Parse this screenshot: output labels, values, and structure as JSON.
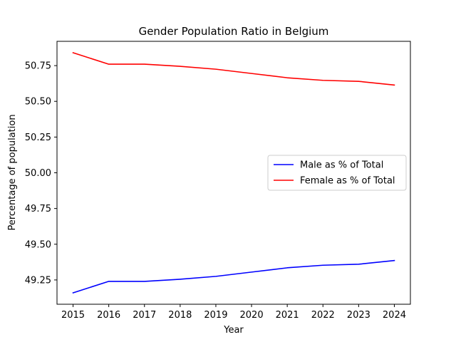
{
  "chart_data": {
    "type": "line",
    "title": "Gender Population Ratio in Belgium",
    "xlabel": "Year",
    "ylabel": "Percentage of population",
    "x": [
      2015,
      2016,
      2017,
      2018,
      2019,
      2020,
      2021,
      2022,
      2023,
      2024
    ],
    "xticks": [
      "2015",
      "2016",
      "2017",
      "2018",
      "2019",
      "2020",
      "2021",
      "2022",
      "2023",
      "2024"
    ],
    "yticks": [
      "49.25",
      "49.50",
      "49.75",
      "50.00",
      "50.25",
      "50.50",
      "50.75"
    ],
    "ytick_values": [
      49.25,
      49.5,
      49.75,
      50.0,
      50.25,
      50.5,
      50.75
    ],
    "xlim": [
      2014.55,
      2024.45
    ],
    "ylim": [
      49.08,
      50.92
    ],
    "grid": false,
    "legend_position": "center-right",
    "series": [
      {
        "name": "Male as % of Total",
        "color": "#0000ff",
        "values": [
          49.16,
          49.24,
          49.24,
          49.255,
          49.275,
          49.305,
          49.335,
          49.353,
          49.36,
          49.386
        ]
      },
      {
        "name": "Female as % of Total",
        "color": "#ff0000",
        "values": [
          50.84,
          50.76,
          50.76,
          50.745,
          50.725,
          50.695,
          50.665,
          50.647,
          50.64,
          50.614
        ]
      }
    ]
  }
}
